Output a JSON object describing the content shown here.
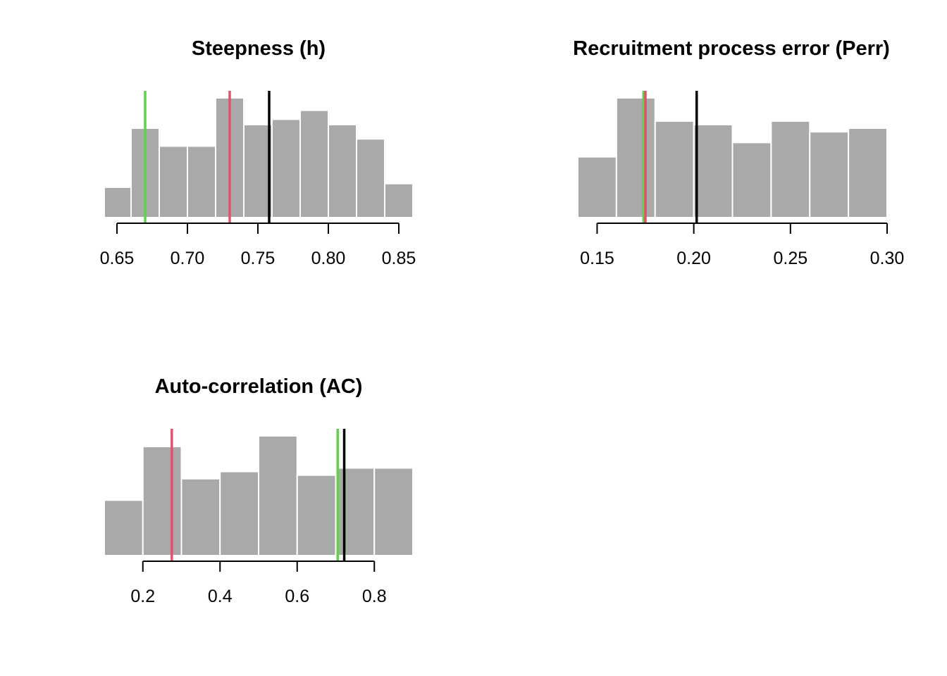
{
  "chart_data": [
    {
      "type": "histogram",
      "title": "Steepness (h)",
      "xlim": [
        0.641,
        0.86
      ],
      "bin_edges": [
        0.64,
        0.66,
        0.68,
        0.7,
        0.72,
        0.74,
        0.76,
        0.78,
        0.8,
        0.82,
        0.84,
        0.86
      ],
      "counts": [
        17,
        50,
        40,
        40,
        67,
        52,
        55,
        60,
        52,
        44,
        19
      ],
      "x_ticks": [
        0.65,
        0.7,
        0.75,
        0.8,
        0.85
      ],
      "x_tick_labels": [
        "0.65",
        "0.70",
        "0.75",
        "0.80",
        "0.85"
      ],
      "reference_lines": [
        {
          "color": "#61D04F",
          "value": 0.67
        },
        {
          "color": "#DF536B",
          "value": 0.73
        },
        {
          "color": "#000000",
          "value": 0.758
        }
      ],
      "bar_color": "#A9A9A9"
    },
    {
      "type": "histogram",
      "title": "Recruitment process error (Perr)",
      "xlim": [
        0.14,
        0.3
      ],
      "bin_edges": [
        0.14,
        0.16,
        0.18,
        0.2,
        0.22,
        0.24,
        0.26,
        0.28,
        0.3
      ],
      "counts": [
        34,
        67,
        54,
        52,
        42,
        54,
        48,
        50
      ],
      "x_ticks": [
        0.15,
        0.2,
        0.25,
        0.3
      ],
      "x_tick_labels": [
        "0.15",
        "0.20",
        "0.25",
        "0.30"
      ],
      "reference_lines": [
        {
          "color": "#61D04F",
          "value": 0.174
        },
        {
          "color": "#DF536B",
          "value": 0.175
        },
        {
          "color": "#000000",
          "value": 0.2015
        }
      ],
      "bar_color": "#A9A9A9"
    },
    {
      "type": "histogram",
      "title": "Auto-correlation (AC)",
      "xlim": [
        0.1,
        0.9
      ],
      "bin_edges": [
        0.1,
        0.2,
        0.3,
        0.4,
        0.5,
        0.6,
        0.7,
        0.8,
        0.9
      ],
      "counts": [
        31,
        61,
        43,
        47,
        67,
        45,
        49,
        49
      ],
      "x_ticks": [
        0.2,
        0.4,
        0.6,
        0.8
      ],
      "x_tick_labels": [
        "0.2",
        "0.4",
        "0.6",
        "0.8"
      ],
      "reference_lines": [
        {
          "color": "#DF536B",
          "value": 0.275
        },
        {
          "color": "#61D04F",
          "value": 0.705
        },
        {
          "color": "#000000",
          "value": 0.722
        }
      ],
      "bar_color": "#A9A9A9"
    }
  ]
}
